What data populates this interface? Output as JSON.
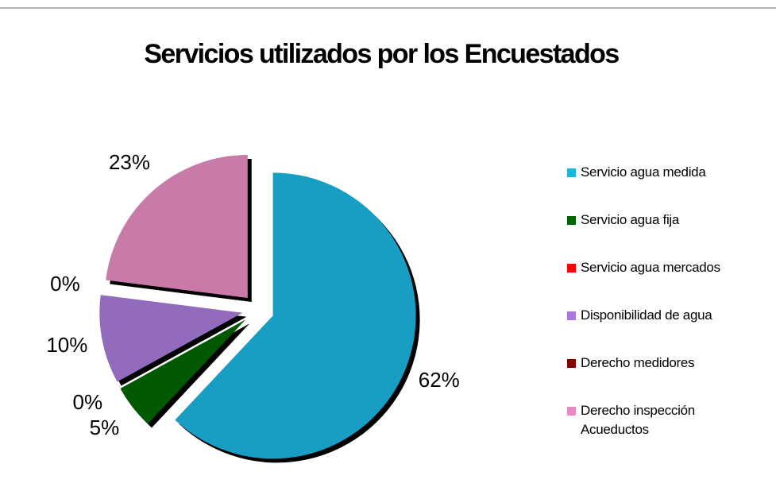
{
  "chart_data": {
    "type": "pie",
    "title": "Servicios utilizados por los Encuestados",
    "categories": [
      "Servicio agua medida",
      "Servicio agua fija",
      "Servicio agua mercados",
      "Disponibilidad de agua",
      "Derecho medidores",
      "Derecho inspección Acueductos"
    ],
    "values": [
      62,
      5,
      0,
      10,
      0,
      23
    ],
    "value_labels": [
      "62%",
      "5%",
      "0%",
      "10%",
      "0%",
      "23%"
    ],
    "colors": [
      "#1cb4de",
      "#006400",
      "#ff0000",
      "#a77ad8",
      "#800000",
      "#e48cc0"
    ],
    "legend": "right"
  }
}
